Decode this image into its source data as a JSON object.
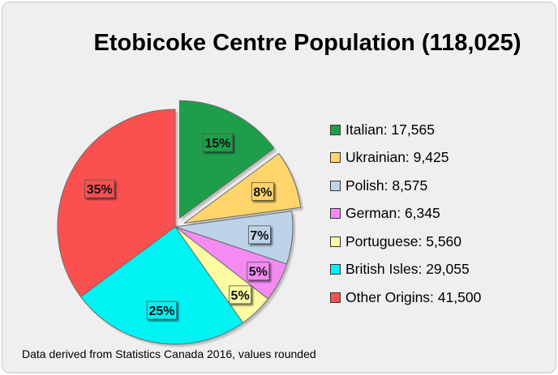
{
  "chart_data": {
    "type": "pie",
    "title": "Etobicoke Centre Population (118,025)",
    "slices": [
      {
        "label": "Italian",
        "value": 17565,
        "value_text": "17,565",
        "percent_label": "15%",
        "color": "#1e9e4a",
        "exploded": true
      },
      {
        "label": "Ukrainian",
        "value": 9425,
        "value_text": "9,425",
        "percent_label": "8%",
        "color": "#ffd56b",
        "exploded": true
      },
      {
        "label": "Polish",
        "value": 8575,
        "value_text": "8,575",
        "percent_label": "7%",
        "color": "#bcd3ea",
        "exploded": false
      },
      {
        "label": "German",
        "value": 6345,
        "value_text": "6,345",
        "percent_label": "5%",
        "color": "#f38bf3",
        "exploded": false
      },
      {
        "label": "Portuguese",
        "value": 5560,
        "value_text": "5,560",
        "percent_label": "5%",
        "color": "#fdfba2",
        "exploded": false
      },
      {
        "label": "British Isles",
        "value": 29055,
        "value_text": "29,055",
        "percent_label": "25%",
        "color": "#00f3f3",
        "exploded": false
      },
      {
        "label": "Other Origins",
        "value": 41500,
        "value_text": "41,500",
        "percent_label": "35%",
        "color": "#fb5050",
        "exploded": false
      }
    ],
    "legend_position": "right",
    "footnote": "Data derived from Statistics Canada 2016, values rounded"
  }
}
